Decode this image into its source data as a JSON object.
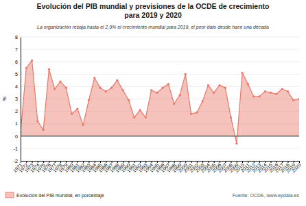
{
  "chart_data": {
    "type": "area",
    "title": "Evolución del PIB mundial y previsiones de la OCDE de crecimiento\npara 2019 y 2020",
    "subtitle": "La organización rebaja hasta el 2,9% el crecimiento mundial para 2019, el peor dato desde hace una década",
    "ylabel": "%",
    "source": "Fuente: OCDE, www.epdata.es",
    "x": [
      1971,
      1972,
      1973,
      1974,
      1975,
      1976,
      1977,
      1978,
      1979,
      1980,
      1981,
      1982,
      1983,
      1984,
      1985,
      1986,
      1987,
      1988,
      1989,
      1990,
      1991,
      1992,
      1993,
      1994,
      1995,
      1996,
      1997,
      1998,
      1999,
      2000,
      2001,
      2002,
      2003,
      2004,
      2005,
      2006,
      2007,
      2008,
      2009,
      2010,
      2011,
      2012,
      2013,
      2014,
      2015,
      2016,
      2017,
      2018,
      2019,
      2020
    ],
    "series": [
      {
        "name": "Evolución del PIB mundial, en porcentaje",
        "color": "#e8786a",
        "marker": "circle",
        "values": [
          0.3,
          5.5,
          6.1,
          1.2,
          0.5,
          5.4,
          3.8,
          4.4,
          3.9,
          1.8,
          2.2,
          0.9,
          2.9,
          4.7,
          3.9,
          3.6,
          3.9,
          4.5,
          3.7,
          2.9,
          1.5,
          2.1,
          1.5,
          3.7,
          3.5,
          3.9,
          4.2,
          2.6,
          3.3,
          5.0,
          1.8,
          1.9,
          2.8,
          4.1,
          3.5,
          4.1,
          3.9,
          1.5,
          -0.6,
          5.1,
          4.2,
          3.2,
          3.2,
          3.6,
          3.5,
          3.4,
          3.8,
          3.6,
          2.9,
          3.0
        ]
      }
    ],
    "xlim": [
      1971,
      2020
    ],
    "xticks": [
      1971,
      1972,
      1973,
      1974,
      1975,
      1976,
      1977,
      1978,
      1979,
      1980,
      1981,
      1982,
      1983,
      1984,
      1985,
      1986,
      1987,
      1988,
      1989,
      1990,
      1991,
      1992,
      1993,
      1994,
      1995,
      1996,
      1997,
      1998,
      1999,
      2000,
      2001,
      2002,
      2003,
      2004,
      2005,
      2006,
      2007,
      2008,
      2009,
      2010,
      2011,
      2012,
      2013,
      2014,
      2015,
      2016,
      2017,
      2018,
      2019,
      2020
    ],
    "ylim": [
      -2,
      8
    ],
    "yticks": [
      -2,
      -1,
      0,
      1,
      2,
      3,
      4,
      5,
      6,
      7,
      8
    ],
    "grid": true,
    "legend": "lower left"
  }
}
